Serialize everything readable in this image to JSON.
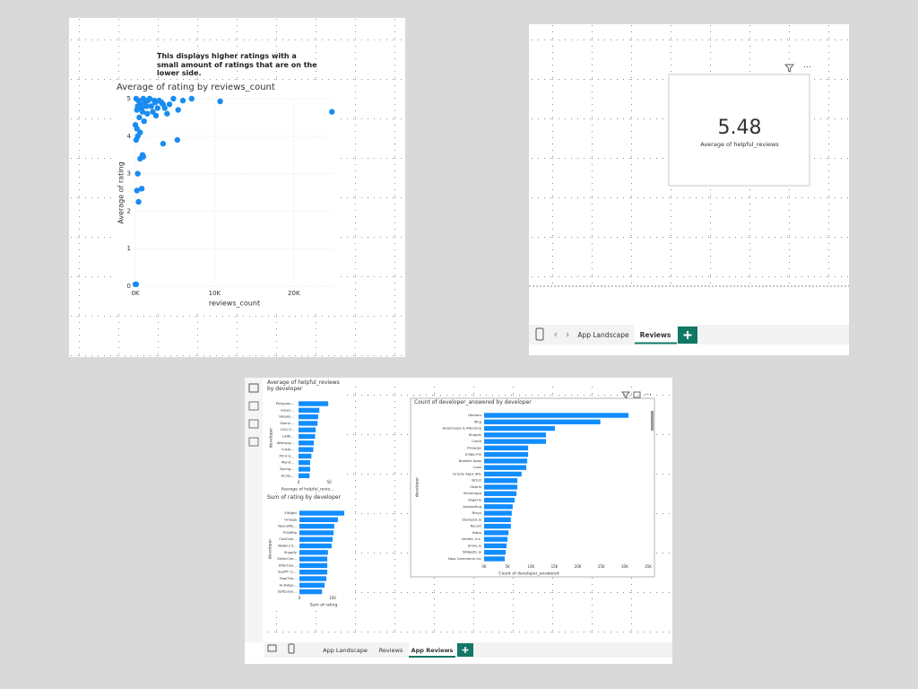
{
  "scatter_panel": {
    "annotation": "This displays higher ratings with a small amount of ratings that are on the lower side.",
    "chart_data": {
      "type": "scatter",
      "title": "Average of rating by reviews_count",
      "x_label": "reviews_count",
      "y_label": "Average of rating",
      "color": "#1a8cf0",
      "x": [
        0,
        24800,
        10700,
        7100,
        6000,
        5400,
        4300,
        3700,
        5300,
        3500,
        900,
        1000,
        600,
        300,
        800,
        200,
        400,
        100,
        200,
        300,
        100,
        600,
        0,
        2000,
        1500,
        2500,
        3000,
        1000,
        500,
        800,
        1200,
        1800,
        200,
        400,
        700,
        1400,
        2200,
        2800,
        3300,
        4000,
        2600,
        100,
        300,
        900,
        1100,
        1600,
        4800,
        2400,
        3500
      ],
      "y": [
        0.05,
        4.65,
        4.93,
        5,
        4.95,
        4.7,
        4.85,
        4.75,
        3.9,
        3.8,
        3.5,
        3.45,
        3.4,
        3.0,
        2.6,
        2.55,
        2.25,
        0.05,
        4.2,
        4.0,
        3.9,
        4.1,
        4.3,
        4.8,
        4.6,
        4.9,
        4.95,
        5,
        4.5,
        4.75,
        4.9,
        5,
        4.7,
        4.95,
        4.85,
        4.8,
        4.65,
        4.75,
        4.9,
        4.6,
        4.55,
        5,
        4.8,
        4.65,
        4.4,
        4.95,
        5,
        4.95,
        4.85
      ],
      "xlim": [
        0,
        25000
      ],
      "xticks": [
        {
          "value": 0,
          "label": "0K"
        },
        {
          "value": 10000,
          "label": "10K"
        },
        {
          "value": 20000,
          "label": "20K"
        }
      ],
      "ylim": [
        0,
        5
      ],
      "yticks": [
        0,
        1,
        2,
        3,
        4,
        5
      ],
      "grid": true
    }
  },
  "card_panel": {
    "value": 5.48,
    "label": "Average of helpful_reviews",
    "tabs": [
      "App Landscape",
      "Reviews"
    ]
  },
  "report_panel": {
    "charts": [
      {
        "type": "bar",
        "title": "Average of helpful_reviews by developer",
        "x_label": "Average of helpful_revie...",
        "y_label": "developer",
        "color": "#118dff",
        "categories": [
          "Pickypan...",
          "Green...",
          "Retailo...",
          "Sharin...",
          "OGO F...",
          "LAIKI...",
          "Afterpay...",
          "Custo...",
          "Print G...",
          "Monit...",
          "Spring...",
          "Acute..."
        ],
        "values": [
          48.5,
          34,
          32,
          31,
          28,
          27,
          25,
          24,
          21,
          19,
          19,
          18
        ],
        "xlim": [
          0,
          60
        ],
        "xticks": [
          0,
          50
        ]
      },
      {
        "type": "bar",
        "title": "Sum of rating by developer",
        "x_label": "Sum of rating",
        "y_label": "developer",
        "color": "#118dff",
        "categories": [
          "EiNight",
          "Omega",
          "NexusMe...",
          "POWRio",
          "CedCom...",
          "Webkul S...",
          "Shopify",
          "SellerChe...",
          "Effective...",
          "SauffT (C...",
          "RealThe...",
          "HulkApp...",
          "Softpulse..."
        ],
        "values": [
          135,
          116,
          105,
          103,
          100,
          97,
          86,
          84,
          84,
          84,
          81,
          76,
          68
        ],
        "xlim": [
          0,
          150
        ],
        "xticks": [
          0,
          100
        ]
      },
      {
        "type": "bar",
        "title": "Count of developer_answered by developer",
        "x_label": "Count of developer_answered",
        "y_label": "developer",
        "color": "#118dff",
        "categories": [
          "Hextom",
          "Ifing",
          "Automizely & Aftership",
          "Shopify",
          "Conlit",
          "Fireapps",
          "Judge.me",
          "Booster Apps",
          "Loox",
          "Grizzly Apps SRL",
          "BOLD",
          "Oberlo",
          "Secomapp",
          "PageFly",
          "Autoketing",
          "Rivyo",
          "Stamped.io",
          "Recart",
          "Yotpo",
          "Vendle, Inc.",
          "Smile.io",
          "Widgetic.ly",
          "Now Commerce Inc"
        ],
        "values": [
          30800,
          24800,
          15100,
          13200,
          13200,
          9400,
          9400,
          9200,
          9000,
          8000,
          7100,
          7100,
          6900,
          6500,
          6100,
          5900,
          5700,
          5700,
          5200,
          5000,
          4800,
          4600,
          4400
        ],
        "xlim": [
          0,
          35000
        ],
        "xticks": [
          {
            "value": 0,
            "label": "0K"
          },
          {
            "value": 5000,
            "label": "5K"
          },
          {
            "value": 10000,
            "label": "10K"
          },
          {
            "value": 15000,
            "label": "15K"
          },
          {
            "value": 20000,
            "label": "20K"
          },
          {
            "value": 25000,
            "label": "25K"
          },
          {
            "value": 30000,
            "label": "30K"
          },
          {
            "value": 35000,
            "label": "35K"
          }
        ]
      }
    ],
    "tabs": [
      "App Landscape",
      "Reviews",
      "App Reviews"
    ]
  }
}
